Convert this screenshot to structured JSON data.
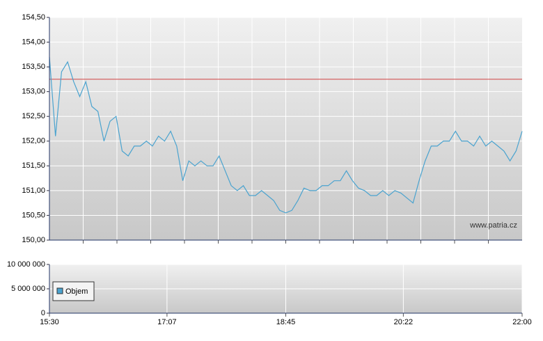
{
  "chart_data": {
    "type": "line",
    "watermark": "www.patria.cz",
    "x": [
      "15:30",
      "15:35",
      "15:40",
      "15:45",
      "15:50",
      "15:55",
      "16:00",
      "16:05",
      "16:10",
      "16:15",
      "16:20",
      "16:25",
      "16:30",
      "16:35",
      "16:40",
      "16:45",
      "16:50",
      "16:55",
      "17:00",
      "17:05",
      "17:10",
      "17:15",
      "17:20",
      "17:25",
      "17:30",
      "17:35",
      "17:40",
      "17:45",
      "17:50",
      "17:55",
      "18:00",
      "18:05",
      "18:10",
      "18:15",
      "18:20",
      "18:25",
      "18:30",
      "18:35",
      "18:40",
      "18:45",
      "18:50",
      "18:55",
      "19:00",
      "19:05",
      "19:10",
      "19:15",
      "19:20",
      "19:25",
      "19:30",
      "19:35",
      "19:40",
      "19:45",
      "19:50",
      "19:55",
      "20:00",
      "20:05",
      "20:10",
      "20:15",
      "20:20",
      "20:25",
      "20:30",
      "20:35",
      "20:40",
      "20:45",
      "20:50",
      "20:55",
      "21:00",
      "21:05",
      "21:10",
      "21:15",
      "21:20",
      "21:25",
      "21:30",
      "21:35",
      "21:40",
      "21:45",
      "21:50",
      "21:55",
      "22:00"
    ],
    "xlim": [
      "15:30",
      "22:00"
    ],
    "xticks": [
      "15:30",
      "17:07",
      "18:45",
      "20:22",
      "22:00"
    ],
    "ylim": [
      150,
      154.5
    ],
    "yticks": [
      {
        "value": 150,
        "label": "150,00"
      },
      {
        "value": 150.5,
        "label": "150,50"
      },
      {
        "value": 151,
        "label": "151,00"
      },
      {
        "value": 151.5,
        "label": "151,50"
      },
      {
        "value": 152,
        "label": "152,00"
      },
      {
        "value": 152.5,
        "label": "152,50"
      },
      {
        "value": 153,
        "label": "153,00"
      },
      {
        "value": 153.5,
        "label": "153,50"
      },
      {
        "value": 154,
        "label": "154,00"
      },
      {
        "value": 154.5,
        "label": "154,50"
      }
    ],
    "y2lim": [
      0,
      10000000
    ],
    "y2ticks": [
      0,
      {
        "value": 5000000,
        "label": "5 000 000"
      },
      {
        "value": 10000000,
        "label": "10 000 000"
      }
    ],
    "reference_line": {
      "value": 153.25,
      "color": "#d04040"
    },
    "grid": true,
    "series": [
      {
        "color": "#4aa3cf",
        "values": [
          153.7,
          152.1,
          153.4,
          153.6,
          153.2,
          152.9,
          153.2,
          152.7,
          152.6,
          152.0,
          152.4,
          152.5,
          151.8,
          151.7,
          151.9,
          151.9,
          152.0,
          151.9,
          152.1,
          152.0,
          152.2,
          151.9,
          151.2,
          151.6,
          151.5,
          151.6,
          151.5,
          151.5,
          151.7,
          151.4,
          151.1,
          151.0,
          151.1,
          150.9,
          150.9,
          151.0,
          150.9,
          150.8,
          150.6,
          150.55,
          150.6,
          150.8,
          151.05,
          151.0,
          151.0,
          151.1,
          151.1,
          151.2,
          151.2,
          151.4,
          151.2,
          151.05,
          151.0,
          150.9,
          150.9,
          151.0,
          150.9,
          151.0,
          150.95,
          150.85,
          150.75,
          151.2,
          151.6,
          151.9,
          151.9,
          152.0,
          152.0,
          152.2,
          152.0,
          152.0,
          151.9,
          152.1,
          151.9,
          152.0,
          151.9,
          151.8,
          151.6,
          151.8,
          152.2
        ]
      },
      {
        "name": "Objem",
        "color": "#4aa3cf",
        "axis": "y2",
        "values": [
          0,
          0,
          0,
          0,
          0,
          0,
          0,
          0,
          0,
          0,
          0,
          0,
          0,
          0,
          0,
          0,
          0,
          0,
          0,
          0,
          0,
          0,
          0,
          0,
          0,
          0,
          0,
          0,
          0,
          0,
          0,
          0,
          0,
          0,
          0,
          0,
          0,
          0,
          0,
          0,
          0,
          0,
          0,
          0,
          0,
          0,
          0,
          0,
          0,
          0,
          0,
          0,
          0,
          0,
          0,
          0,
          0,
          0,
          0,
          0,
          0,
          0,
          0,
          0,
          0,
          0,
          0,
          0,
          0,
          0,
          0,
          0,
          0,
          0,
          0,
          0,
          0,
          0,
          0
        ]
      }
    ]
  }
}
